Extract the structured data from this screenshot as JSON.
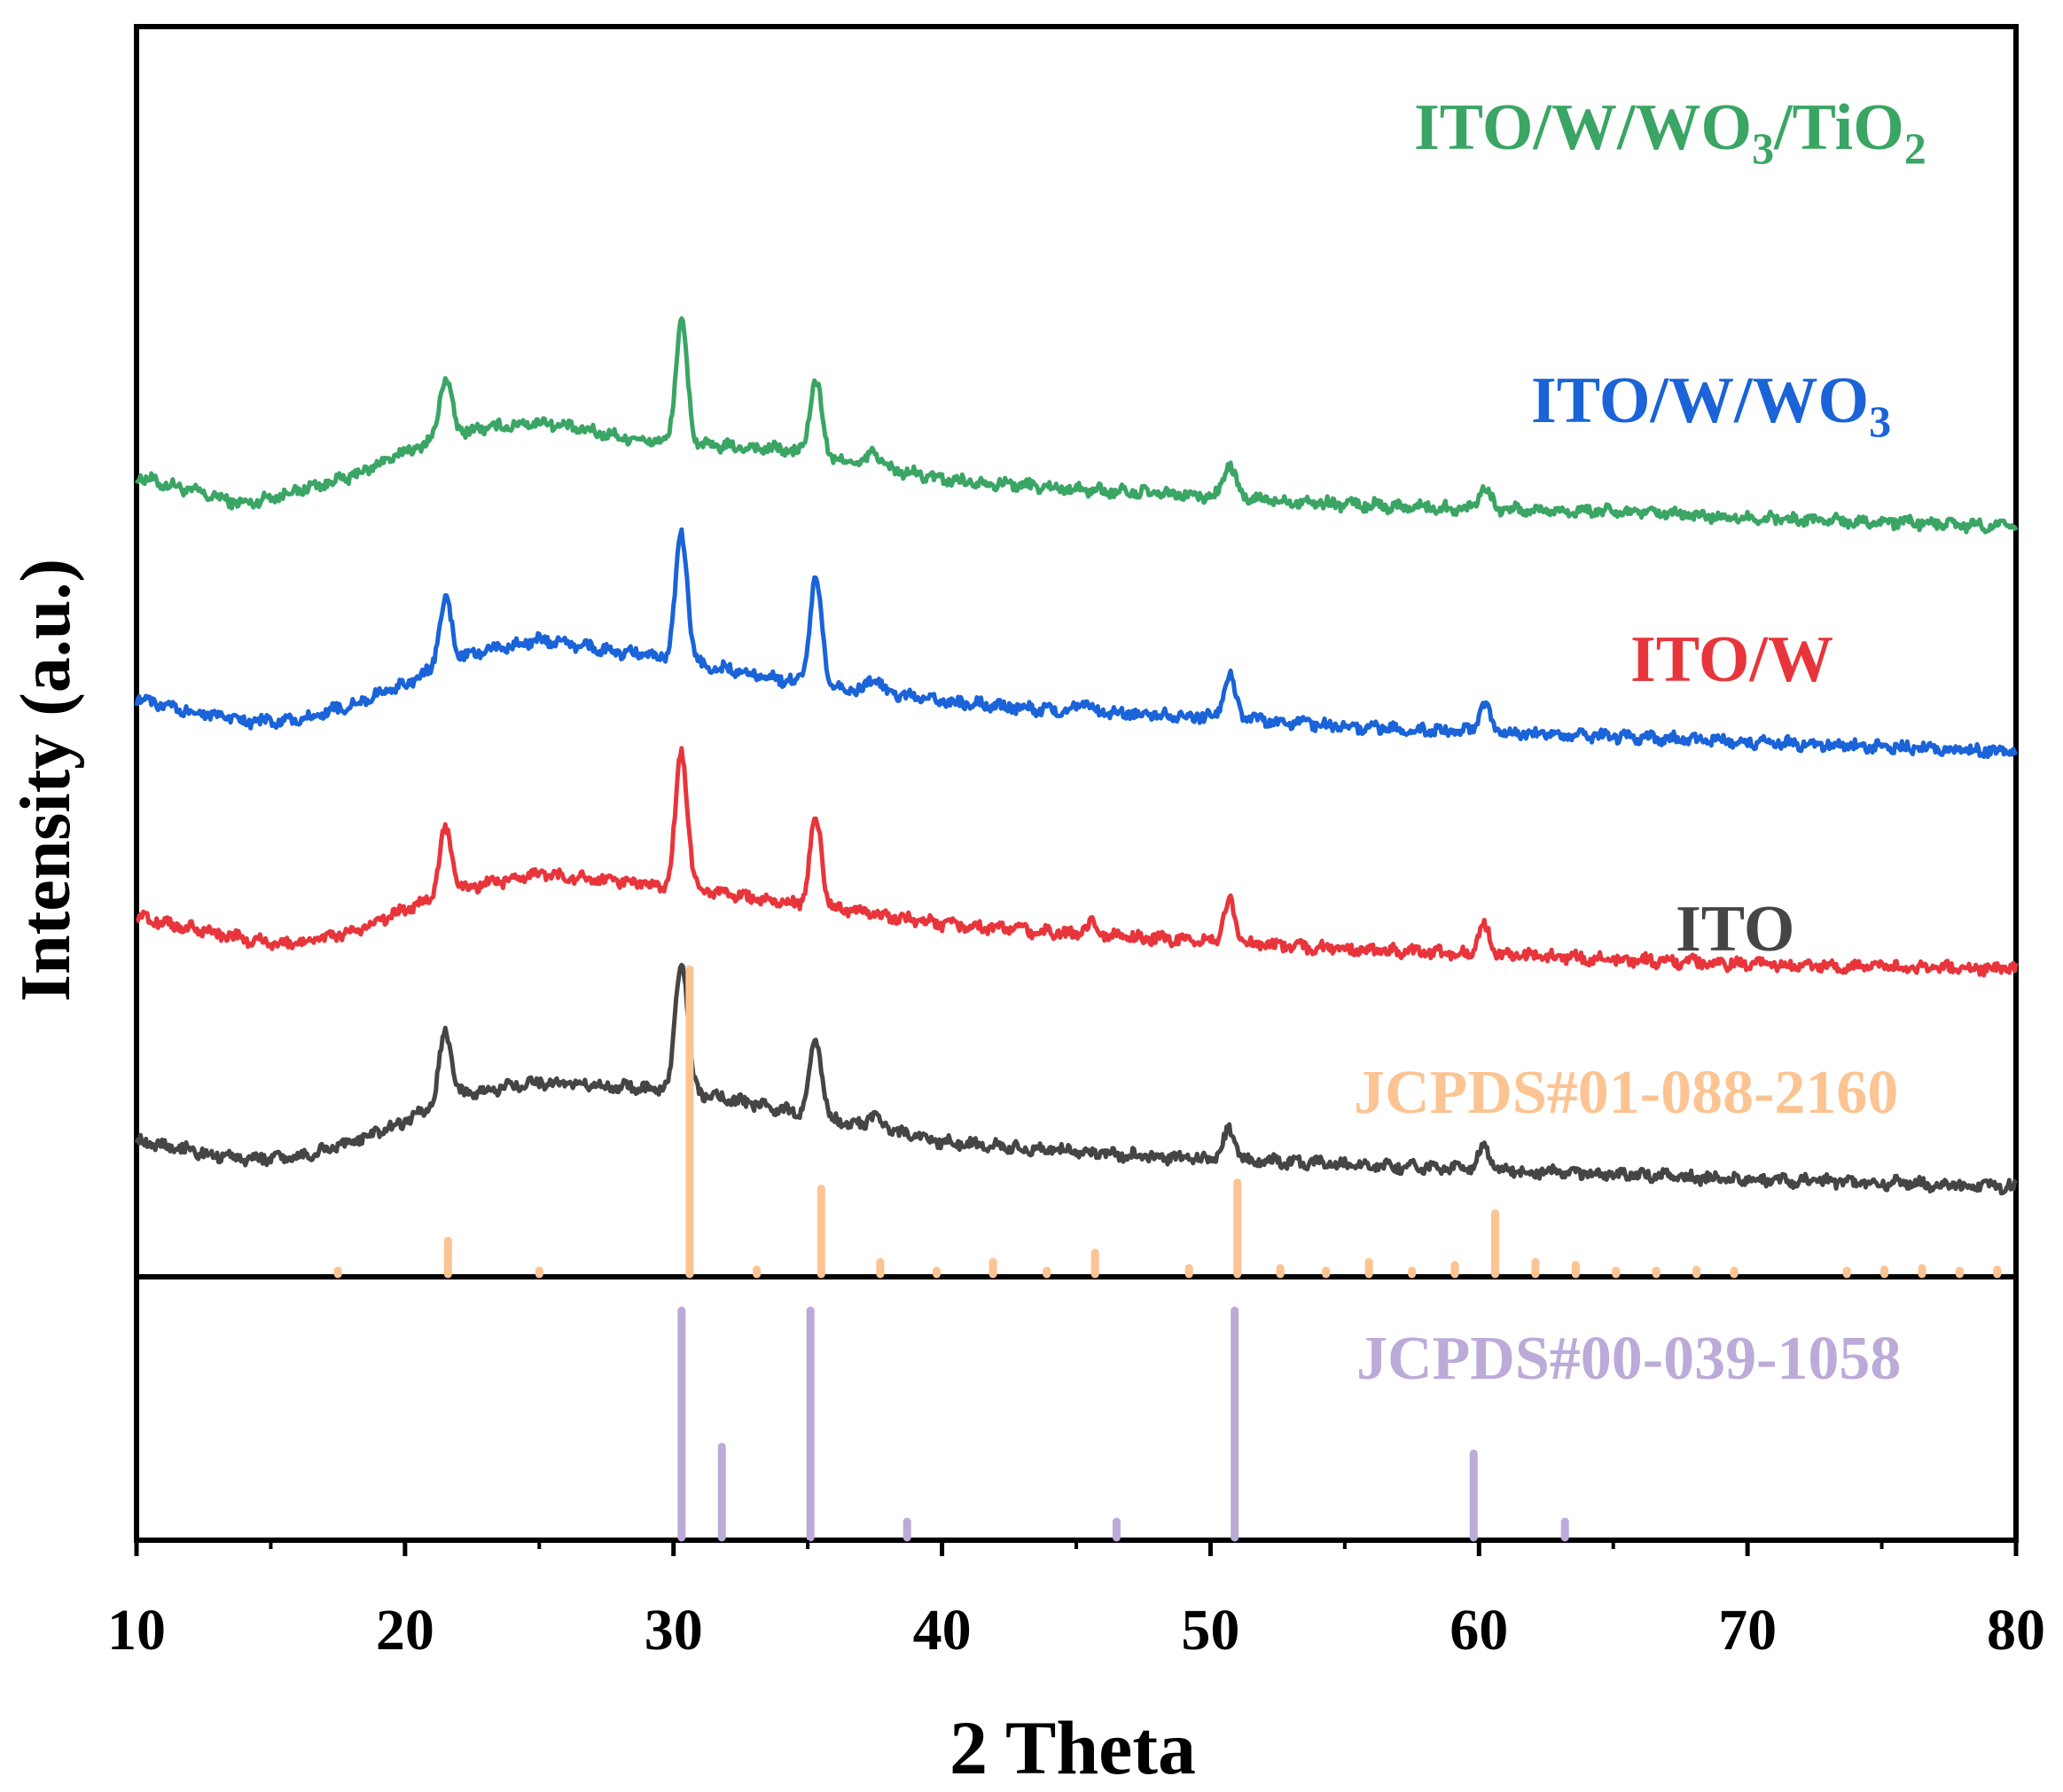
{
  "chart_data": {
    "type": "line",
    "title": "",
    "xlabel": "2 Theta",
    "ylabel": "Intensity (a.u.)",
    "xlim": [
      10,
      80
    ],
    "xticks": [
      10,
      20,
      30,
      40,
      50,
      60,
      70,
      80
    ],
    "grid": false,
    "series": [
      {
        "name": "ITO/W/WO₃/TiO₂",
        "label_main": "ITO/W/WO",
        "label_sub1": "3",
        "label_mid": "/TiO",
        "label_sub2": "2",
        "color": "#3aa564",
        "baseline": [
          [
            10,
            0.64
          ],
          [
            14,
            0.618
          ],
          [
            18,
            0.64
          ],
          [
            20,
            0.66
          ],
          [
            22,
            0.676
          ],
          [
            25,
            0.684
          ],
          [
            28,
            0.672
          ],
          [
            30,
            0.666
          ],
          [
            34,
            0.662
          ],
          [
            40,
            0.638
          ],
          [
            45,
            0.63
          ],
          [
            50,
            0.624
          ],
          [
            55,
            0.618
          ],
          [
            60,
            0.614
          ],
          [
            65,
            0.612
          ],
          [
            70,
            0.607
          ],
          [
            75,
            0.604
          ],
          [
            80,
            0.6
          ]
        ],
        "peaks": [
          [
            21.5,
            0.047
          ],
          [
            30.3,
            0.096
          ],
          [
            35.3,
            0.06
          ],
          [
            37.5,
            0.012
          ],
          [
            50.7,
            0.026
          ],
          [
            60.2,
            0.018
          ]
        ]
      },
      {
        "name": "ITO/W/WO₃",
        "label_main": "ITO/W/WO",
        "label_sub1": "3",
        "color": "#1a63d8",
        "baseline": [
          [
            10,
            0.462
          ],
          [
            14,
            0.444
          ],
          [
            16,
            0.445
          ],
          [
            18,
            0.458
          ],
          [
            20,
            0.474
          ],
          [
            22,
            0.496
          ],
          [
            25,
            0.51
          ],
          [
            28,
            0.5
          ],
          [
            30,
            0.494
          ],
          [
            34,
            0.478
          ],
          [
            40,
            0.46
          ],
          [
            45,
            0.452
          ],
          [
            50,
            0.448
          ],
          [
            55,
            0.44
          ],
          [
            60,
            0.436
          ],
          [
            65,
            0.432
          ],
          [
            70,
            0.428
          ],
          [
            75,
            0.424
          ],
          [
            80,
            0.42
          ]
        ],
        "peaks": [
          [
            21.5,
            0.052
          ],
          [
            30.3,
            0.1
          ],
          [
            35.3,
            0.085
          ],
          [
            37.5,
            0.012
          ],
          [
            45.3,
            0.008
          ],
          [
            50.7,
            0.034
          ],
          [
            60.2,
            0.022
          ]
        ]
      },
      {
        "name": "ITO/W",
        "label_main": "ITO/W",
        "color": "#e8353b",
        "baseline": [
          [
            10,
            0.288
          ],
          [
            14,
            0.27
          ],
          [
            16,
            0.266
          ],
          [
            18,
            0.276
          ],
          [
            20,
            0.294
          ],
          [
            22,
            0.31
          ],
          [
            25,
            0.322
          ],
          [
            28,
            0.316
          ],
          [
            30,
            0.312
          ],
          [
            34,
            0.3
          ],
          [
            40,
            0.282
          ],
          [
            45,
            0.274
          ],
          [
            50,
            0.268
          ],
          [
            55,
            0.262
          ],
          [
            60,
            0.258
          ],
          [
            65,
            0.254
          ],
          [
            70,
            0.25
          ],
          [
            75,
            0.248
          ],
          [
            80,
            0.246
          ]
        ],
        "peaks": [
          [
            21.5,
            0.052
          ],
          [
            30.3,
            0.108
          ],
          [
            35.3,
            0.07
          ],
          [
            45.6,
            0.01
          ],
          [
            50.7,
            0.033
          ],
          [
            60.2,
            0.022
          ]
        ]
      },
      {
        "name": "ITO",
        "label_main": "ITO",
        "color": "#454545",
        "baseline": [
          [
            10,
            0.108
          ],
          [
            14,
            0.094
          ],
          [
            16,
            0.096
          ],
          [
            18,
            0.108
          ],
          [
            20,
            0.124
          ],
          [
            22,
            0.146
          ],
          [
            25,
            0.156
          ],
          [
            28,
            0.152
          ],
          [
            30,
            0.15
          ],
          [
            34,
            0.134
          ],
          [
            40,
            0.108
          ],
          [
            45,
            0.1
          ],
          [
            50,
            0.094
          ],
          [
            55,
            0.09
          ],
          [
            60,
            0.086
          ],
          [
            65,
            0.082
          ],
          [
            70,
            0.078
          ],
          [
            75,
            0.075
          ],
          [
            80,
            0.072
          ]
        ],
        "peaks": [
          [
            21.5,
            0.055
          ],
          [
            30.3,
            0.106
          ],
          [
            35.3,
            0.062
          ],
          [
            37.5,
            0.012
          ],
          [
            50.7,
            0.024
          ],
          [
            60.2,
            0.018
          ]
        ]
      }
    ],
    "references": [
      {
        "name": "JCPDS#01-088-2160",
        "color": "#fcc492",
        "max_intensity": 100,
        "sticks": [
          [
            17.5,
            1
          ],
          [
            21.6,
            11
          ],
          [
            25,
            0.5
          ],
          [
            30.6,
            100
          ],
          [
            33.1,
            1.5
          ],
          [
            35.5,
            28
          ],
          [
            37.7,
            4
          ],
          [
            39.8,
            1
          ],
          [
            41.9,
            4
          ],
          [
            43.9,
            1
          ],
          [
            45.7,
            7
          ],
          [
            49.2,
            2
          ],
          [
            51.0,
            30
          ],
          [
            52.6,
            2
          ],
          [
            54.3,
            1
          ],
          [
            55.9,
            4
          ],
          [
            57.5,
            1
          ],
          [
            59.1,
            3
          ],
          [
            60.6,
            20
          ],
          [
            62.1,
            4
          ],
          [
            63.6,
            3
          ],
          [
            65.1,
            1
          ],
          [
            66.6,
            0.5
          ],
          [
            68.1,
            1.5
          ],
          [
            69.5,
            1
          ],
          [
            73.7,
            1
          ],
          [
            75.1,
            1.5
          ],
          [
            76.5,
            2
          ],
          [
            77.9,
            1
          ],
          [
            79.3,
            1.5
          ]
        ]
      },
      {
        "name": "JCPDS#00-039-1058",
        "color": "#bcaad8",
        "max_intensity": 100,
        "sticks": [
          [
            30.3,
            100
          ],
          [
            31.8,
            40
          ],
          [
            35.1,
            100
          ],
          [
            38.7,
            7
          ],
          [
            46.5,
            7
          ],
          [
            50.9,
            100
          ],
          [
            59.8,
            37
          ],
          [
            63.2,
            7
          ]
        ]
      }
    ]
  }
}
